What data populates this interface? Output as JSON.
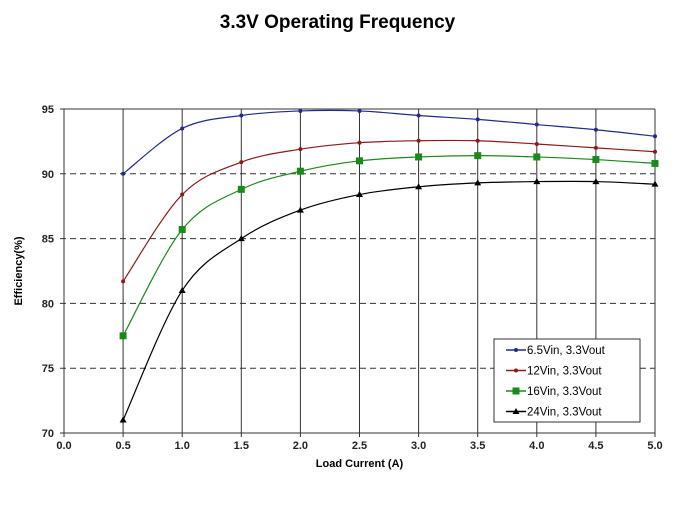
{
  "chart_data": {
    "type": "line",
    "title": "3.3V Operating Frequency",
    "xlabel": "Load Current (A)",
    "ylabel": "Efficiency(%)",
    "xlim": [
      0,
      5
    ],
    "ylim": [
      70,
      95
    ],
    "xticks": [
      "0.0",
      "0.5",
      "1.0",
      "1.5",
      "2.0",
      "2.5",
      "3.0",
      "3.5",
      "4.0",
      "4.5",
      "5.0"
    ],
    "yticks": [
      "70",
      "75",
      "80",
      "85",
      "90",
      "95"
    ],
    "grid": {
      "vertical": "solid",
      "horizontal": "dashed"
    },
    "legend_position": "bottom-right",
    "x": [
      0.5,
      1.0,
      1.5,
      2.0,
      2.5,
      3.0,
      3.5,
      4.0,
      4.5,
      5.0
    ],
    "series": [
      {
        "name": "6.5Vin, 3.3Vout",
        "color": "#1f2a8c",
        "marker": "dot",
        "values": [
          90.0,
          93.5,
          94.5,
          94.85,
          94.85,
          94.5,
          94.2,
          93.8,
          93.4,
          92.9
        ]
      },
      {
        "name": "12Vin, 3.3Vout",
        "color": "#8b1a1a",
        "marker": "dot",
        "values": [
          81.7,
          88.4,
          90.9,
          91.9,
          92.4,
          92.55,
          92.55,
          92.3,
          92.0,
          91.7
        ]
      },
      {
        "name": "16Vin, 3.3Vout",
        "color": "#1a8a1a",
        "marker": "square",
        "values": [
          77.5,
          85.7,
          88.8,
          90.2,
          91.0,
          91.3,
          91.4,
          91.3,
          91.1,
          90.8
        ]
      },
      {
        "name": "24Vin, 3.3Vout",
        "color": "#000000",
        "marker": "triangle",
        "values": [
          71.0,
          81.0,
          85.0,
          87.2,
          88.4,
          89.0,
          89.3,
          89.4,
          89.4,
          89.2
        ]
      }
    ]
  }
}
